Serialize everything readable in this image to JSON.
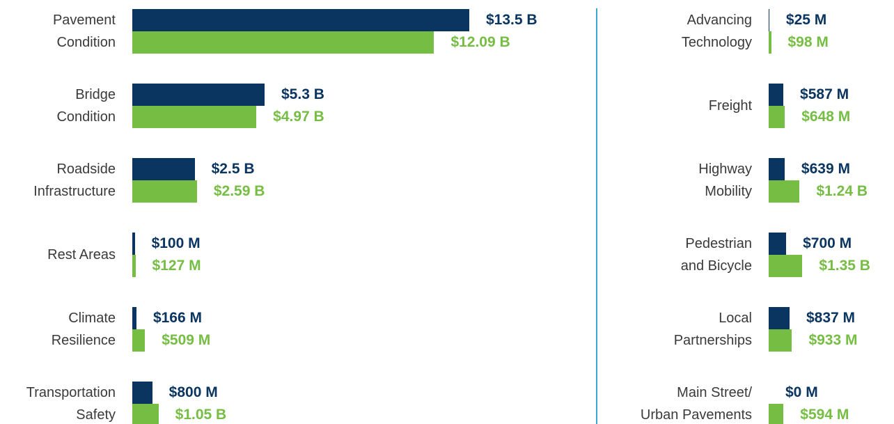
{
  "chart_data": [
    {
      "type": "barh",
      "categories": [
        "Pavement\nCondition",
        "Bridge\nCondition",
        "Roadside\nInfrastructure",
        "Rest Areas",
        "Climate\nResilience",
        "Transportation\nSafety"
      ],
      "series": [
        {
          "color": "#0b3561",
          "values": [
            13500,
            5300,
            2500,
            100,
            166,
            800
          ],
          "value_labels": [
            "$13.5 B",
            "$5.3 B",
            "$2.5 B",
            "$100 M",
            "$166 M",
            "$800 M"
          ]
        },
        {
          "color": "#76bd43",
          "values": [
            12090,
            4970,
            2590,
            127,
            509,
            1050
          ],
          "value_labels": [
            "$12.09 B",
            "$4.97 B",
            "$2.59 B",
            "$127 M",
            "$509 M",
            "$1.05 B"
          ]
        }
      ]
    },
    {
      "type": "barh",
      "categories": [
        "Advancing\nTechnology",
        "Freight",
        "Highway\nMobility",
        "Pedestrian\nand Bicycle",
        "Local\nPartnerships",
        "Main Street/\nUrban Pavements"
      ],
      "series": [
        {
          "color": "#0b3561",
          "values": [
            25,
            587,
            639,
            700,
            837,
            0
          ],
          "value_labels": [
            "$25 M",
            "$587 M",
            "$639 M",
            "$700 M",
            "$837 M",
            "$0 M"
          ]
        },
        {
          "color": "#76bd43",
          "values": [
            98,
            648,
            1240,
            1350,
            933,
            594
          ],
          "value_labels": [
            "$98 M",
            "$648 M",
            "$1.24 B",
            "$1.35 B",
            "$933 M",
            "$594 M"
          ]
        }
      ]
    }
  ]
}
